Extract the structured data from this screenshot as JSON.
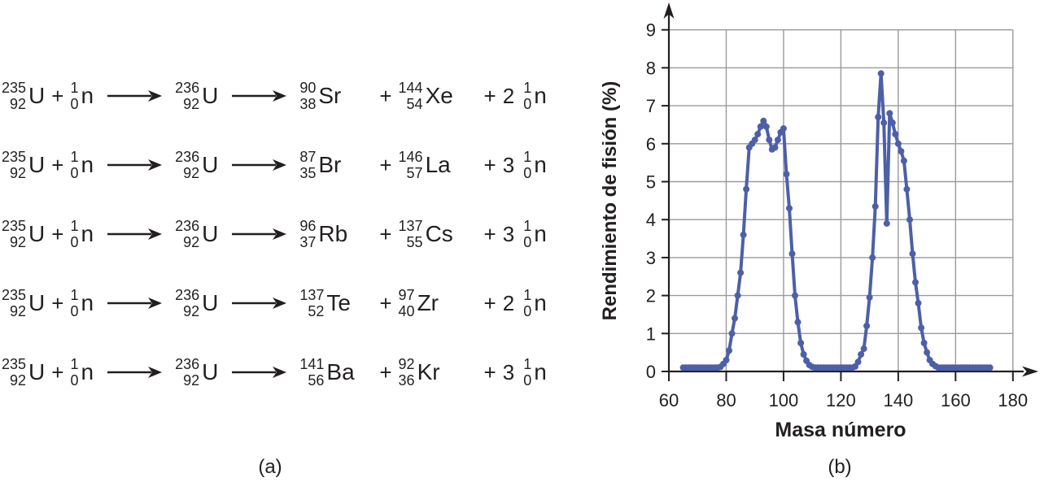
{
  "panel_a": {
    "caption": "(a)",
    "plus": "+",
    "equations": [
      {
        "reactants": [
          {
            "A": "235",
            "Z": "92",
            "sym": "U"
          },
          {
            "A": "1",
            "Z": "0",
            "sym": "n"
          }
        ],
        "intermediate": {
          "A": "236",
          "Z": "92",
          "sym": "U"
        },
        "products": [
          {
            "A": "90",
            "Z": "38",
            "sym": "Sr"
          },
          {
            "A": "144",
            "Z": "54",
            "sym": "Xe"
          },
          {
            "coeff": "2",
            "A": "1",
            "Z": "0",
            "sym": "n"
          }
        ]
      },
      {
        "reactants": [
          {
            "A": "235",
            "Z": "92",
            "sym": "U"
          },
          {
            "A": "1",
            "Z": "0",
            "sym": "n"
          }
        ],
        "intermediate": {
          "A": "236",
          "Z": "92",
          "sym": "U"
        },
        "products": [
          {
            "A": "87",
            "Z": "35",
            "sym": "Br"
          },
          {
            "A": "146",
            "Z": "57",
            "sym": "La"
          },
          {
            "coeff": "3",
            "A": "1",
            "Z": "0",
            "sym": "n"
          }
        ]
      },
      {
        "reactants": [
          {
            "A": "235",
            "Z": "92",
            "sym": "U"
          },
          {
            "A": "1",
            "Z": "0",
            "sym": "n"
          }
        ],
        "intermediate": {
          "A": "236",
          "Z": "92",
          "sym": "U"
        },
        "products": [
          {
            "A": "96",
            "Z": "37",
            "sym": "Rb"
          },
          {
            "A": "137",
            "Z": "55",
            "sym": "Cs"
          },
          {
            "coeff": "3",
            "A": "1",
            "Z": "0",
            "sym": "n"
          }
        ]
      },
      {
        "reactants": [
          {
            "A": "235",
            "Z": "92",
            "sym": "U"
          },
          {
            "A": "1",
            "Z": "0",
            "sym": "n"
          }
        ],
        "intermediate": {
          "A": "236",
          "Z": "92",
          "sym": "U"
        },
        "products": [
          {
            "A": "137",
            "Z": "52",
            "sym": "Te"
          },
          {
            "A": "97",
            "Z": "40",
            "sym": "Zr"
          },
          {
            "coeff": "2",
            "A": "1",
            "Z": "0",
            "sym": "n"
          }
        ]
      },
      {
        "reactants": [
          {
            "A": "235",
            "Z": "92",
            "sym": "U"
          },
          {
            "A": "1",
            "Z": "0",
            "sym": "n"
          }
        ],
        "intermediate": {
          "A": "236",
          "Z": "92",
          "sym": "U"
        },
        "products": [
          {
            "A": "141",
            "Z": "56",
            "sym": "Ba"
          },
          {
            "A": "92",
            "Z": "36",
            "sym": "Kr"
          },
          {
            "coeff": "3",
            "A": "1",
            "Z": "0",
            "sym": "n"
          }
        ]
      }
    ]
  },
  "panel_b": {
    "caption": "(b)",
    "chart_data": {
      "type": "line",
      "title": "",
      "xlabel": "Masa número",
      "ylabel": "Rendimiento de fisión (%)",
      "xlim": [
        60,
        185
      ],
      "ylim": [
        0,
        9
      ],
      "x_ticks": [
        60,
        80,
        100,
        120,
        140,
        160,
        180
      ],
      "y_ticks": [
        0,
        1,
        2,
        3,
        4,
        5,
        6,
        7,
        8,
        9
      ],
      "grid": true,
      "legend": "none",
      "marker": "circle",
      "series": [
        {
          "x": [
            65,
            66,
            67,
            68,
            69,
            70,
            71,
            72,
            73,
            74,
            75,
            76,
            77,
            78,
            79,
            80,
            81,
            82,
            83,
            84,
            85,
            86,
            87,
            88,
            89,
            90,
            91,
            92,
            93,
            94,
            95,
            96,
            97,
            98,
            99,
            100,
            101,
            102,
            103,
            104,
            105,
            106,
            107,
            108,
            109,
            110,
            111,
            112,
            113,
            114,
            115,
            116,
            117,
            118,
            119,
            120,
            121,
            122,
            123,
            124,
            125,
            126,
            127,
            128,
            129,
            130,
            131,
            132,
            133,
            134,
            135,
            136,
            137,
            138,
            139,
            140,
            141,
            142,
            143,
            144,
            145,
            146,
            147,
            148,
            149,
            150,
            151,
            152,
            153,
            154,
            155,
            156,
            157,
            158,
            159,
            160,
            161,
            162,
            163,
            164,
            165,
            166,
            167,
            168,
            169,
            170,
            171,
            172
          ],
          "y": [
            0.1,
            0.1,
            0.1,
            0.1,
            0.1,
            0.1,
            0.1,
            0.1,
            0.1,
            0.1,
            0.1,
            0.1,
            0.1,
            0.12,
            0.2,
            0.3,
            0.55,
            1.0,
            1.4,
            2.0,
            2.6,
            3.6,
            4.8,
            5.9,
            6.0,
            6.1,
            6.25,
            6.45,
            6.6,
            6.45,
            6.1,
            5.85,
            5.9,
            6.1,
            6.3,
            6.4,
            5.2,
            4.3,
            3.1,
            2.0,
            1.3,
            0.75,
            0.45,
            0.28,
            0.17,
            0.12,
            0.1,
            0.1,
            0.1,
            0.1,
            0.1,
            0.1,
            0.1,
            0.1,
            0.1,
            0.1,
            0.1,
            0.1,
            0.1,
            0.1,
            0.13,
            0.25,
            0.45,
            0.6,
            1.2,
            1.95,
            3.0,
            4.35,
            6.7,
            7.85,
            6.55,
            3.9,
            6.8,
            6.55,
            6.25,
            6.0,
            5.8,
            5.55,
            4.8,
            4.0,
            3.1,
            2.35,
            1.8,
            1.15,
            0.75,
            0.5,
            0.3,
            0.2,
            0.14,
            0.1,
            0.1,
            0.1,
            0.1,
            0.1,
            0.1,
            0.1,
            0.1,
            0.1,
            0.1,
            0.1,
            0.1,
            0.1,
            0.1,
            0.1,
            0.1,
            0.1,
            0.1,
            0.1
          ]
        }
      ]
    }
  },
  "colors": {
    "curve": "#4d5fa7",
    "grid": "#9a9a9a",
    "axis": "#231f20",
    "text": "#231f20"
  }
}
